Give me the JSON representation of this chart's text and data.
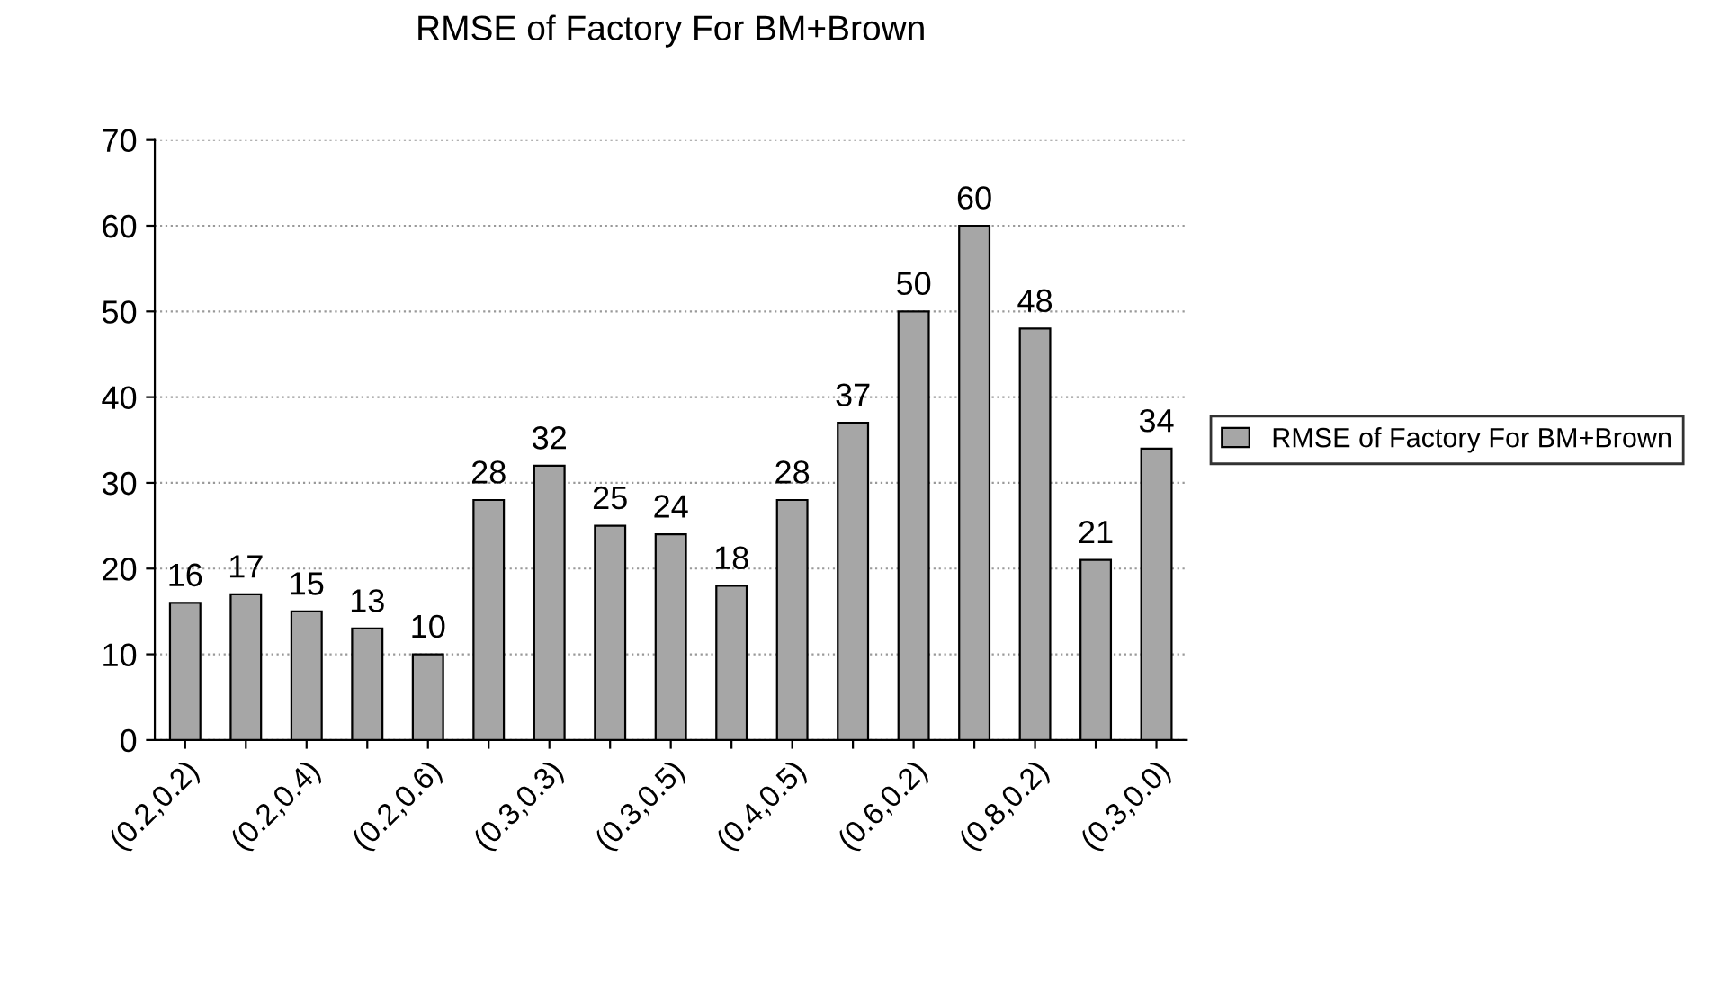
{
  "chart_data": {
    "type": "bar",
    "title": "RMSE of Factory For BM+Brown",
    "categories": [
      "(0.2,0.2)",
      null,
      "(0.2,0.4)",
      null,
      "(0.2,0.6)",
      null,
      "(0.3,0.3)",
      null,
      "(0.3,0.5)",
      null,
      "(0.4,0.5)",
      null,
      "(0.6,0.2)",
      null,
      "(0.8,0.2)",
      null,
      "(0.3,0.0)"
    ],
    "series": [
      {
        "name": "RMSE of Factory For BM+Brown",
        "color": "#a6a6a6",
        "values": [
          16,
          17,
          15,
          13,
          10,
          28,
          32,
          25,
          24,
          18,
          28,
          37,
          50,
          60,
          48,
          21,
          34
        ]
      }
    ],
    "ylim": [
      0,
      70
    ],
    "yticks": [
      0,
      10,
      20,
      30,
      40,
      50,
      60,
      70
    ],
    "grid": "y",
    "legend": "right",
    "data_labels": true
  }
}
